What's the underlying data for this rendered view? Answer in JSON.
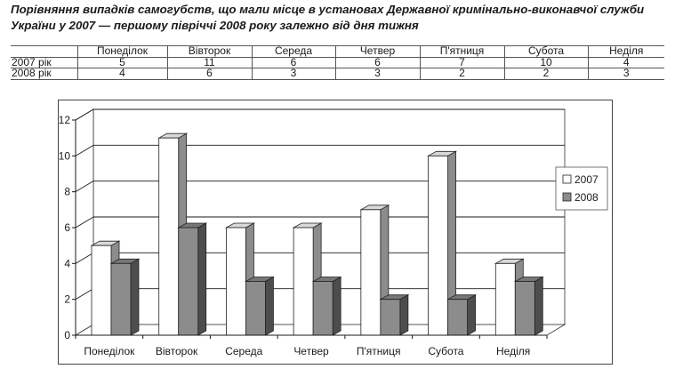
{
  "title": "Порівняння випадків самогубств, що мали місце в установах Державної кримінально-виконавчої служби України у 2007 — першому півріччі 2008 року залежно від дня тижня",
  "table": {
    "header": [
      "",
      "Понеділок",
      "Вівторок",
      "Середа",
      "Четвер",
      "П'ятниця",
      "Субота",
      "Неділя"
    ],
    "rows": [
      [
        "2007 рік",
        "5",
        "11",
        "6",
        "6",
        "7",
        "10",
        "4"
      ],
      [
        "2008 рік",
        "4",
        "6",
        "3",
        "3",
        "2",
        "2",
        "3"
      ]
    ]
  },
  "colors": {
    "series_2007": "#ffffff",
    "series_2008": "#8c8c8c",
    "gridline": "#1a1a1a",
    "wall": "#ffffff"
  },
  "chart_data": {
    "type": "bar",
    "style": "3d-clustered-column",
    "categories": [
      "Понеділок",
      "Вівторок",
      "Середа",
      "Четвер",
      "П'ятниця",
      "Субота",
      "Неділя"
    ],
    "series": [
      {
        "name": "2007",
        "values": [
          5,
          11,
          6,
          6,
          7,
          10,
          4
        ]
      },
      {
        "name": "2008",
        "values": [
          4,
          6,
          3,
          3,
          2,
          2,
          3
        ]
      }
    ],
    "yticks": [
      0,
      2,
      4,
      6,
      8,
      10,
      12
    ],
    "ylim": [
      0,
      12
    ],
    "grid": true,
    "legend_position": "right"
  }
}
